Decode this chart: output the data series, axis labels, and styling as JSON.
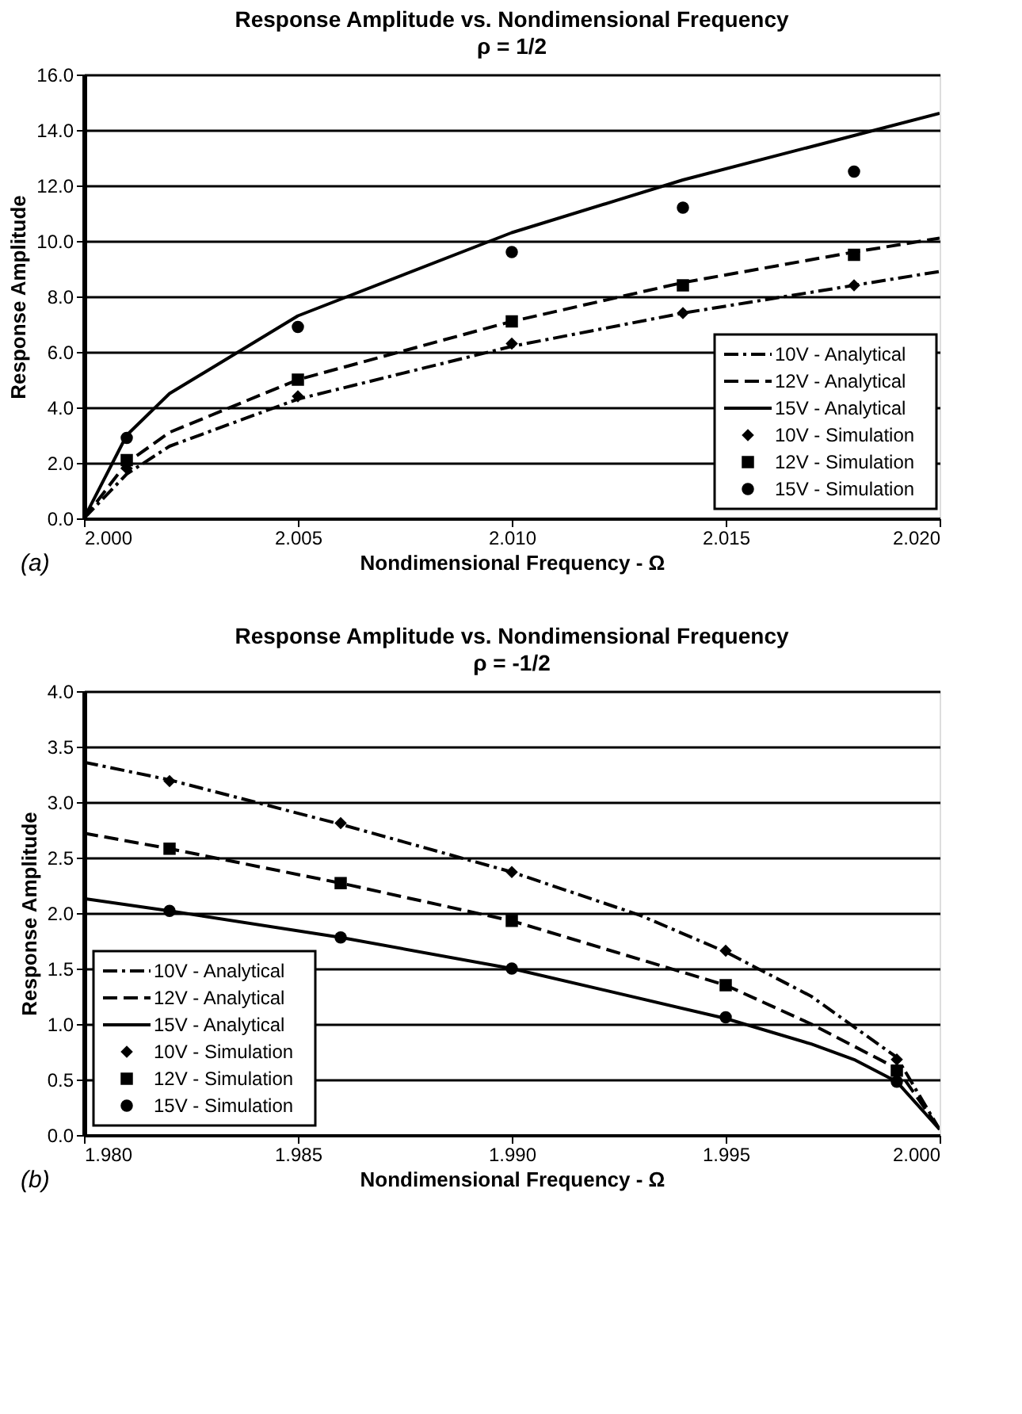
{
  "chart_data": [
    {
      "type": "line",
      "title": "Response Amplitude vs. Nondimensional Frequency",
      "subtitle": "ρ = 1/2",
      "xlabel": "Nondimensional Frequency - Ω",
      "ylabel": "Response Amplitude",
      "annotations": [
        "(a)"
      ],
      "xlim": [
        2.0,
        2.02
      ],
      "xticks": [
        {
          "value": 2.0,
          "label": "2.000"
        },
        {
          "value": 2.005,
          "label": "2.005"
        },
        {
          "value": 2.01,
          "label": "2.010"
        },
        {
          "value": 2.015,
          "label": "2.015"
        },
        {
          "value": 2.02,
          "label": "2.020"
        }
      ],
      "ylim": [
        0,
        16
      ],
      "yticks": [
        {
          "value": 0,
          "label": "0.0"
        },
        {
          "value": 2,
          "label": "2.0"
        },
        {
          "value": 4,
          "label": "4.0"
        },
        {
          "value": 6,
          "label": "6.0"
        },
        {
          "value": 8,
          "label": "8.0"
        },
        {
          "value": 10,
          "label": "10.0"
        },
        {
          "value": 12,
          "label": "12.0"
        },
        {
          "value": 14,
          "label": "14.0"
        },
        {
          "value": 16,
          "label": "16.0"
        }
      ],
      "grid": "y",
      "legend": "bottom right",
      "series": [
        {
          "name": "10V - Analytical",
          "line_style": "dashdot",
          "color": "#000000",
          "x": [
            2.0,
            2.001,
            2.002,
            2.005,
            2.01,
            2.014,
            2.018,
            2.02
          ],
          "values": [
            0,
            1.6,
            2.6,
            4.3,
            6.2,
            7.4,
            8.4,
            8.9
          ]
        },
        {
          "name": "12V - Analytical",
          "line_style": "dashed",
          "color": "#000000",
          "x": [
            2.0,
            2.001,
            2.002,
            2.005,
            2.01,
            2.014,
            2.018,
            2.02
          ],
          "values": [
            0,
            2.0,
            3.1,
            5.0,
            7.1,
            8.5,
            9.6,
            10.1
          ]
        },
        {
          "name": "15V - Analytical",
          "line_style": "solid",
          "color": "#000000",
          "x": [
            2.0,
            2.001,
            2.002,
            2.005,
            2.01,
            2.014,
            2.018,
            2.02
          ],
          "values": [
            0,
            3.0,
            4.5,
            7.3,
            10.3,
            12.2,
            13.8,
            14.6
          ]
        },
        {
          "name": "10V - Simulation",
          "type": "scatter",
          "marker": "diamond",
          "color": "#000000",
          "x": [
            2.001,
            2.005,
            2.01,
            2.014,
            2.018
          ],
          "values": [
            1.8,
            4.4,
            6.3,
            7.4,
            8.4
          ]
        },
        {
          "name": "12V - Simulation",
          "type": "scatter",
          "marker": "square",
          "color": "#000000",
          "x": [
            2.001,
            2.005,
            2.01,
            2.014,
            2.018
          ],
          "values": [
            2.1,
            5.0,
            7.1,
            8.4,
            9.5
          ]
        },
        {
          "name": "15V - Simulation",
          "type": "scatter",
          "marker": "circle",
          "color": "#000000",
          "x": [
            2.001,
            2.005,
            2.01,
            2.014,
            2.018
          ],
          "values": [
            2.9,
            6.9,
            9.6,
            11.2,
            12.5
          ]
        }
      ]
    },
    {
      "type": "line",
      "title": "Response Amplitude vs. Nondimensional Frequency",
      "subtitle": "ρ = -1/2",
      "xlabel": "Nondimensional Frequency - Ω",
      "ylabel": "Response Amplitude",
      "annotations": [
        "(b)"
      ],
      "xlim": [
        1.98,
        2.0
      ],
      "xticks": [
        {
          "value": 1.98,
          "label": "1.980"
        },
        {
          "value": 1.985,
          "label": "1.985"
        },
        {
          "value": 1.99,
          "label": "1.990"
        },
        {
          "value": 1.995,
          "label": "1.995"
        },
        {
          "value": 2.0,
          "label": "2.000"
        }
      ],
      "ylim": [
        0,
        4
      ],
      "yticks": [
        {
          "value": 0,
          "label": "0.0"
        },
        {
          "value": 0.5,
          "label": "0.5"
        },
        {
          "value": 1,
          "label": "1.0"
        },
        {
          "value": 1.5,
          "label": "1.5"
        },
        {
          "value": 2,
          "label": "2.0"
        },
        {
          "value": 2.5,
          "label": "2.5"
        },
        {
          "value": 3,
          "label": "3.0"
        },
        {
          "value": 3.5,
          "label": "3.5"
        },
        {
          "value": 4,
          "label": "4.0"
        }
      ],
      "grid": "y",
      "legend": "bottom left",
      "series": [
        {
          "name": "10V - Analytical",
          "line_style": "dashdot",
          "color": "#000000",
          "x": [
            1.98,
            1.982,
            1.986,
            1.99,
            1.993,
            1.995,
            1.997,
            1.999,
            2.0
          ],
          "values": [
            3.36,
            3.2,
            2.8,
            2.37,
            1.98,
            1.65,
            1.25,
            0.7,
            0.05
          ]
        },
        {
          "name": "12V - Analytical",
          "line_style": "dashed",
          "color": "#000000",
          "x": [
            1.98,
            1.982,
            1.986,
            1.99,
            1.995,
            1.997,
            1.999,
            2.0
          ],
          "values": [
            2.72,
            2.58,
            2.27,
            1.93,
            1.35,
            1.0,
            0.6,
            0.05
          ]
        },
        {
          "name": "15V - Analytical",
          "line_style": "solid",
          "color": "#000000",
          "x": [
            1.98,
            1.982,
            1.986,
            1.99,
            1.995,
            1.997,
            1.998,
            1.999,
            2.0
          ],
          "values": [
            2.13,
            2.02,
            1.78,
            1.5,
            1.05,
            0.82,
            0.68,
            0.48,
            0.05
          ]
        },
        {
          "name": "10V - Simulation",
          "type": "scatter",
          "marker": "diamond",
          "color": "#000000",
          "x": [
            1.982,
            1.986,
            1.99,
            1.995,
            1.999
          ],
          "values": [
            3.19,
            2.81,
            2.37,
            1.66,
            0.68
          ]
        },
        {
          "name": "12V - Simulation",
          "type": "scatter",
          "marker": "square",
          "color": "#000000",
          "x": [
            1.982,
            1.986,
            1.99,
            1.995,
            1.999
          ],
          "values": [
            2.58,
            2.27,
            1.93,
            1.35,
            0.58
          ]
        },
        {
          "name": "15V - Simulation",
          "type": "scatter",
          "marker": "circle",
          "color": "#000000",
          "x": [
            1.982,
            1.986,
            1.99,
            1.995,
            1.999
          ],
          "values": [
            2.02,
            1.78,
            1.5,
            1.06,
            0.48
          ]
        }
      ]
    }
  ]
}
